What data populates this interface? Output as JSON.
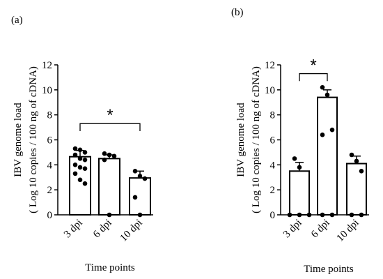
{
  "chart_data": [
    {
      "panel_label": "(a)",
      "type": "bar",
      "categories": [
        "3 dpi",
        "6 dpi",
        "10 dpi"
      ],
      "values": [
        4.65,
        4.5,
        2.95
      ],
      "error": [
        0.5,
        0.3,
        0.55
      ],
      "points": [
        [
          5.3,
          5.2,
          5.0,
          4.8,
          4.5,
          4.4,
          4.0,
          3.8,
          3.7,
          3.3,
          2.8,
          2.5
        ],
        [
          4.9,
          4.8,
          4.7,
          4.4,
          0.0
        ],
        [
          3.5,
          3.1,
          2.9,
          1.4,
          0.0
        ]
      ],
      "ylim": [
        0,
        12
      ],
      "yticks": [
        0,
        2,
        4,
        6,
        8,
        10,
        12
      ],
      "ylabel_line1": "IBV genome load",
      "ylabel_line2": "( Log 10 copies / 100 ng of cDNA)",
      "xlabel": "Time points",
      "significance": {
        "from": 0,
        "to": 2,
        "y": 7.3,
        "label": "*"
      }
    },
    {
      "panel_label": "(b)",
      "type": "bar",
      "categories": [
        "3 dpi",
        "6 dpi",
        "10 dpi"
      ],
      "values": [
        3.5,
        9.4,
        4.1
      ],
      "error": [
        0.7,
        0.6,
        0.6
      ],
      "points": [
        [
          4.5,
          3.8,
          0.0,
          0.0,
          0.0
        ],
        [
          10.2,
          9.6,
          6.8,
          6.4,
          0.0,
          0.0
        ],
        [
          4.8,
          4.3,
          3.5,
          0.0,
          0.0
        ]
      ],
      "ylim": [
        0,
        12
      ],
      "yticks": [
        0,
        2,
        4,
        6,
        8,
        10,
        12
      ],
      "ylabel_line1": "IBV genome load",
      "ylabel_line2": "( Log 10 copies / 100 ng of cDNA)",
      "xlabel": "Time points",
      "significance": {
        "from": 0,
        "to": 1,
        "y": 11.3,
        "label": "*"
      }
    }
  ]
}
